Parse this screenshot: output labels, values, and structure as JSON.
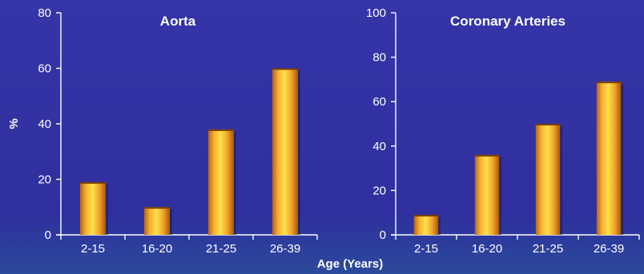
{
  "chart_data": [
    {
      "type": "bar",
      "title": "Aorta",
      "categories": [
        "2-15",
        "16-20",
        "21-25",
        "26-39"
      ],
      "values": [
        19,
        10,
        38,
        60
      ],
      "ylim": [
        0,
        80
      ],
      "yticks": [
        0,
        20,
        40,
        60,
        80
      ],
      "ylabel": "%",
      "xlabel": "",
      "grid": false
    },
    {
      "type": "bar",
      "title": "Coronary Arteries",
      "categories": [
        "2-15",
        "16-20",
        "21-25",
        "26-39"
      ],
      "values": [
        9,
        36,
        50,
        69
      ],
      "ylim": [
        0,
        100
      ],
      "yticks": [
        0,
        20,
        40,
        60,
        80,
        100
      ],
      "ylabel": "",
      "xlabel": "",
      "grid": false
    }
  ],
  "shared_xlabel": "Age (Years)",
  "colors": {
    "background": "#2f2f9f",
    "bar_light": "#ffd23f",
    "bar_mid": "#f2a830",
    "bar_dark": "#c06a10",
    "axis": "#ffffff",
    "text": "#ffffff"
  }
}
